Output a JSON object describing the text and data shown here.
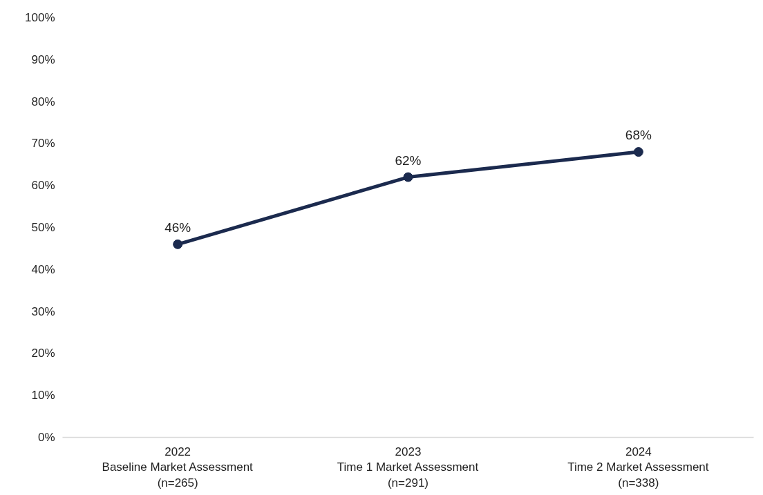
{
  "chart_data": {
    "type": "line",
    "categories": [
      "2022\nBaseline Market Assessment\n(n=265)",
      "2023\nTime 1 Market Assessment\n(n=291)",
      "2024\nTime 2 Market Assessment\n(n=338)"
    ],
    "series": [
      {
        "color": "#1b2a4e",
        "values": [
          46,
          62,
          68
        ],
        "value_labels": [
          "46%",
          "62%",
          "68%"
        ]
      }
    ],
    "ylim": [
      0,
      100
    ],
    "yticks": [
      {
        "value": 0,
        "label": "0%"
      },
      {
        "value": 10,
        "label": "10%"
      },
      {
        "value": 20,
        "label": "20%"
      },
      {
        "value": 30,
        "label": "30%"
      },
      {
        "value": 40,
        "label": "40%"
      },
      {
        "value": 50,
        "label": "50%"
      },
      {
        "value": 60,
        "label": "60%"
      },
      {
        "value": 70,
        "label": "70%"
      },
      {
        "value": 80,
        "label": "80%"
      },
      {
        "value": 90,
        "label": "90%"
      },
      {
        "value": 100,
        "label": "100%"
      }
    ],
    "grid": false,
    "marker": "circle",
    "line_style": "solid"
  }
}
